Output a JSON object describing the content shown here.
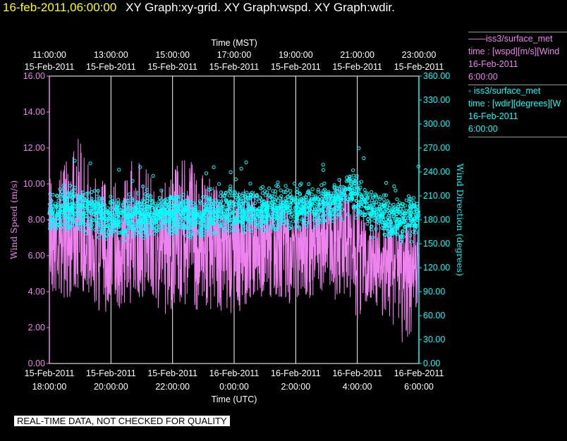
{
  "header": {
    "timestamp": "16-feb-2011,06:00:00",
    "titles": "XY Graph:xy-grid.  XY Graph:wspd.  XY Graph:wdir."
  },
  "legend": {
    "wspd": {
      "name": "——iss3/surface_met",
      "variable": "time : [wspd][m/s][Wind",
      "date": "16-Feb-2011",
      "time": "6:00:00"
    },
    "wdir": {
      "name": "◦  iss3/surface_met",
      "variable": "time : [wdir][degrees][W",
      "date": "16-Feb-2011",
      "time": "6:00:00"
    }
  },
  "footer": {
    "qc_note": "REAL-TIME DATA, NOT CHECKED FOR QUALITY"
  },
  "colors": {
    "wspd": "#ee82ee",
    "wdir": "#00ffff",
    "grid": "#ffffff",
    "background": "#000000",
    "timestamp": "#ffff00"
  },
  "chart_data": {
    "type": "line",
    "top_axis": {
      "label": "Time (MST)",
      "ticks": [
        {
          "time": "11:00:00",
          "date": "15-Feb-2011"
        },
        {
          "time": "13:00:00",
          "date": "15-Feb-2011"
        },
        {
          "time": "15:00:00",
          "date": "15-Feb-2011"
        },
        {
          "time": "17:00:00",
          "date": "15-Feb-2011"
        },
        {
          "time": "19:00:00",
          "date": "15-Feb-2011"
        },
        {
          "time": "21:00:00",
          "date": "15-Feb-2011"
        },
        {
          "time": "23:00:00",
          "date": "15-Feb-2011"
        }
      ]
    },
    "bottom_axis": {
      "label": "Time (UTC)",
      "ticks": [
        {
          "date": "15-Feb-2011",
          "time": "18:00:00"
        },
        {
          "date": "15-Feb-2011",
          "time": "20:00:00"
        },
        {
          "date": "15-Feb-2011",
          "time": "22:00:00"
        },
        {
          "date": "16-Feb-2011",
          "time": "0:00:00"
        },
        {
          "date": "16-Feb-2011",
          "time": "2:00:00"
        },
        {
          "date": "16-Feb-2011",
          "time": "4:00:00"
        },
        {
          "date": "16-Feb-2011",
          "time": "6:00:00"
        }
      ]
    },
    "left_axis": {
      "label": "Wind Speed (m/s)",
      "ylim": [
        0,
        16
      ],
      "ticks": [
        "0.00",
        "2.00",
        "4.00",
        "6.00",
        "8.00",
        "10.00",
        "12.00",
        "14.00",
        "16.00"
      ]
    },
    "right_axis": {
      "label": "Wind Direction (degrees)",
      "ylim": [
        0,
        360
      ],
      "ticks": [
        "0.00",
        "30.00",
        "60.00",
        "90.00",
        "120.00",
        "150.00",
        "180.00",
        "210.00",
        "240.00",
        "270.00",
        "300.00",
        "330.00",
        "360.00"
      ]
    },
    "grid": "vertical",
    "series": [
      {
        "key": "wspd",
        "style": "line",
        "axis": "left",
        "x_hours_utc": [
          18.0,
          18.25,
          18.5,
          18.75,
          19.0,
          19.25,
          19.5,
          19.75,
          20.0,
          20.25,
          20.5,
          20.75,
          21.0,
          21.25,
          21.5,
          21.75,
          22.0,
          22.25,
          22.5,
          22.75,
          23.0,
          23.25,
          23.5,
          23.75,
          24.0,
          24.25,
          24.5,
          24.75,
          25.0,
          25.25,
          25.5,
          25.75,
          26.0,
          26.25,
          26.5,
          26.75,
          27.0,
          27.25,
          27.5,
          27.75,
          28.0,
          28.25,
          28.5,
          28.75,
          29.0,
          29.25,
          29.5,
          29.75,
          30.0
        ],
        "mean": [
          7.5,
          7.4,
          7.3,
          7.6,
          7.8,
          7.5,
          7.2,
          7.0,
          6.9,
          7.0,
          7.1,
          7.3,
          7.2,
          7.1,
          7.0,
          7.0,
          7.1,
          7.3,
          7.4,
          7.2,
          7.1,
          7.0,
          6.8,
          6.7,
          6.8,
          6.9,
          7.0,
          7.0,
          7.1,
          7.0,
          7.0,
          6.9,
          7.0,
          7.2,
          7.1,
          7.0,
          7.0,
          7.1,
          7.2,
          7.0,
          6.2,
          5.8,
          6.0,
          6.5,
          6.3,
          5.5,
          5.0,
          5.4,
          6.0
        ],
        "max": [
          11.6,
          11.0,
          11.2,
          13.6,
          12.8,
          11.5,
          10.5,
          10.6,
          10.4,
          10.9,
          11.0,
          11.5,
          11.2,
          10.8,
          10.5,
          10.2,
          10.6,
          11.4,
          12.3,
          11.0,
          10.6,
          10.4,
          9.8,
          9.5,
          9.6,
          9.8,
          10.0,
          9.6,
          9.8,
          9.5,
          9.6,
          9.4,
          9.5,
          9.8,
          9.6,
          9.5,
          9.6,
          9.8,
          10.5,
          9.5,
          9.0,
          8.8,
          8.6,
          9.0,
          8.8,
          8.0,
          8.0,
          8.6,
          8.2
        ],
        "min": [
          3.5,
          3.8,
          3.3,
          3.9,
          4.2,
          3.6,
          2.9,
          2.7,
          2.8,
          3.0,
          3.2,
          3.5,
          3.4,
          3.1,
          3.0,
          2.6,
          2.2,
          3.0,
          3.3,
          2.9,
          3.1,
          3.0,
          2.9,
          2.8,
          2.5,
          3.0,
          3.4,
          3.6,
          3.7,
          3.5,
          3.4,
          3.2,
          3.5,
          3.7,
          3.5,
          3.2,
          3.4,
          3.5,
          3.8,
          3.0,
          2.3,
          2.4,
          3.6,
          2.8,
          2.0,
          2.2,
          0.8,
          1.7,
          3.5
        ]
      },
      {
        "key": "wdir",
        "style": "scatter",
        "axis": "right",
        "x_hours_utc": [
          18.0,
          18.25,
          18.5,
          18.75,
          19.0,
          19.25,
          19.5,
          19.75,
          20.0,
          20.25,
          20.5,
          20.75,
          21.0,
          21.25,
          21.5,
          21.75,
          22.0,
          22.25,
          22.5,
          22.75,
          23.0,
          23.25,
          23.5,
          23.75,
          24.0,
          24.25,
          24.5,
          24.75,
          25.0,
          25.25,
          25.5,
          25.75,
          26.0,
          26.25,
          26.5,
          26.75,
          27.0,
          27.25,
          27.5,
          27.75,
          28.0,
          28.25,
          28.5,
          28.75,
          29.0,
          29.25,
          29.5,
          29.75,
          30.0
        ],
        "mean": [
          190,
          188,
          192,
          195,
          196,
          194,
          188,
          182,
          180,
          184,
          186,
          188,
          186,
          184,
          186,
          188,
          187,
          186,
          185,
          184,
          186,
          188,
          190,
          192,
          190,
          191,
          192,
          192,
          193,
          194,
          195,
          196,
          196,
          197,
          198,
          200,
          202,
          204,
          206,
          220,
          212,
          196,
          190,
          185,
          180,
          178,
          182,
          185,
          190
        ],
        "spread": [
          22,
          22,
          22,
          22,
          22,
          22,
          22,
          22,
          22,
          22,
          22,
          22,
          22,
          22,
          22,
          22,
          22,
          22,
          22,
          22,
          22,
          22,
          22,
          22,
          22,
          22,
          22,
          22,
          22,
          22,
          22,
          22,
          22,
          22,
          22,
          22,
          22,
          22,
          22,
          22,
          22,
          22,
          22,
          22,
          22,
          22,
          22,
          22,
          22
        ]
      }
    ]
  }
}
